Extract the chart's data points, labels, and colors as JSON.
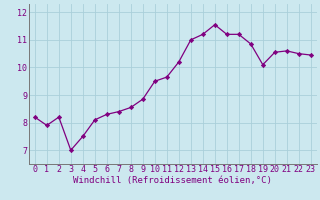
{
  "x": [
    0,
    1,
    2,
    3,
    4,
    5,
    6,
    7,
    8,
    9,
    10,
    11,
    12,
    13,
    14,
    15,
    16,
    17,
    18,
    19,
    20,
    21,
    22,
    23
  ],
  "y": [
    8.2,
    7.9,
    8.2,
    7.0,
    7.5,
    8.1,
    8.3,
    8.4,
    8.55,
    8.85,
    9.5,
    9.65,
    10.2,
    11.0,
    11.2,
    11.55,
    11.2,
    11.2,
    10.85,
    10.1,
    10.55,
    10.6,
    10.5,
    10.45
  ],
  "line_color": "#800080",
  "marker": "D",
  "markersize": 2.2,
  "linewidth": 0.9,
  "bg_color": "#cce8ef",
  "grid_color": "#aacfda",
  "xlabel": "Windchill (Refroidissement éolien,°C)",
  "ylim": [
    6.5,
    12.3
  ],
  "xlim": [
    -0.5,
    23.5
  ],
  "yticks": [
    7,
    8,
    9,
    10,
    11,
    12
  ],
  "xtick_labels": [
    "0",
    "1",
    "2",
    "3",
    "4",
    "5",
    "6",
    "7",
    "8",
    "9",
    "10",
    "11",
    "12",
    "13",
    "14",
    "15",
    "16",
    "17",
    "18",
    "19",
    "20",
    "21",
    "22",
    "23"
  ],
  "font_color": "#800080",
  "tick_fontsize": 6.0,
  "xlabel_fontsize": 6.5
}
